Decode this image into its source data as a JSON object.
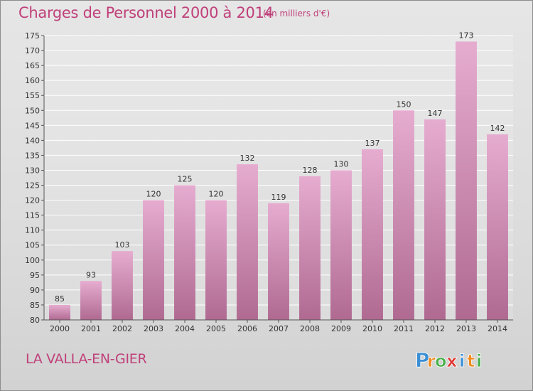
{
  "chart_data": {
    "type": "bar",
    "title": "Charges de Personnel 2000 à 2014",
    "subtitle": "(en milliers d'€)",
    "categories": [
      "2000",
      "2001",
      "2002",
      "2003",
      "2004",
      "2005",
      "2006",
      "2007",
      "2008",
      "2009",
      "2010",
      "2011",
      "2012",
      "2013",
      "2014"
    ],
    "values": [
      85,
      93,
      103,
      120,
      125,
      120,
      132,
      119,
      128,
      130,
      137,
      150,
      147,
      173,
      142
    ],
    "ylim": [
      80,
      175
    ],
    "yticks": [
      80,
      85,
      90,
      95,
      100,
      105,
      110,
      115,
      120,
      125,
      130,
      135,
      140,
      145,
      150,
      155,
      160,
      165,
      170,
      175
    ],
    "grid": true,
    "bar_color": "#d88ab5"
  },
  "commune": "LA VALLA-EN-GIER",
  "logo": {
    "letters": [
      "P",
      "r",
      "o",
      "x",
      "i",
      "t",
      "i"
    ],
    "colors": [
      "#3a8fd6",
      "#f08a1c",
      "#48b04a",
      "#e0332f",
      "#3a8fd6",
      "#f08a1c",
      "#48b04a"
    ]
  }
}
